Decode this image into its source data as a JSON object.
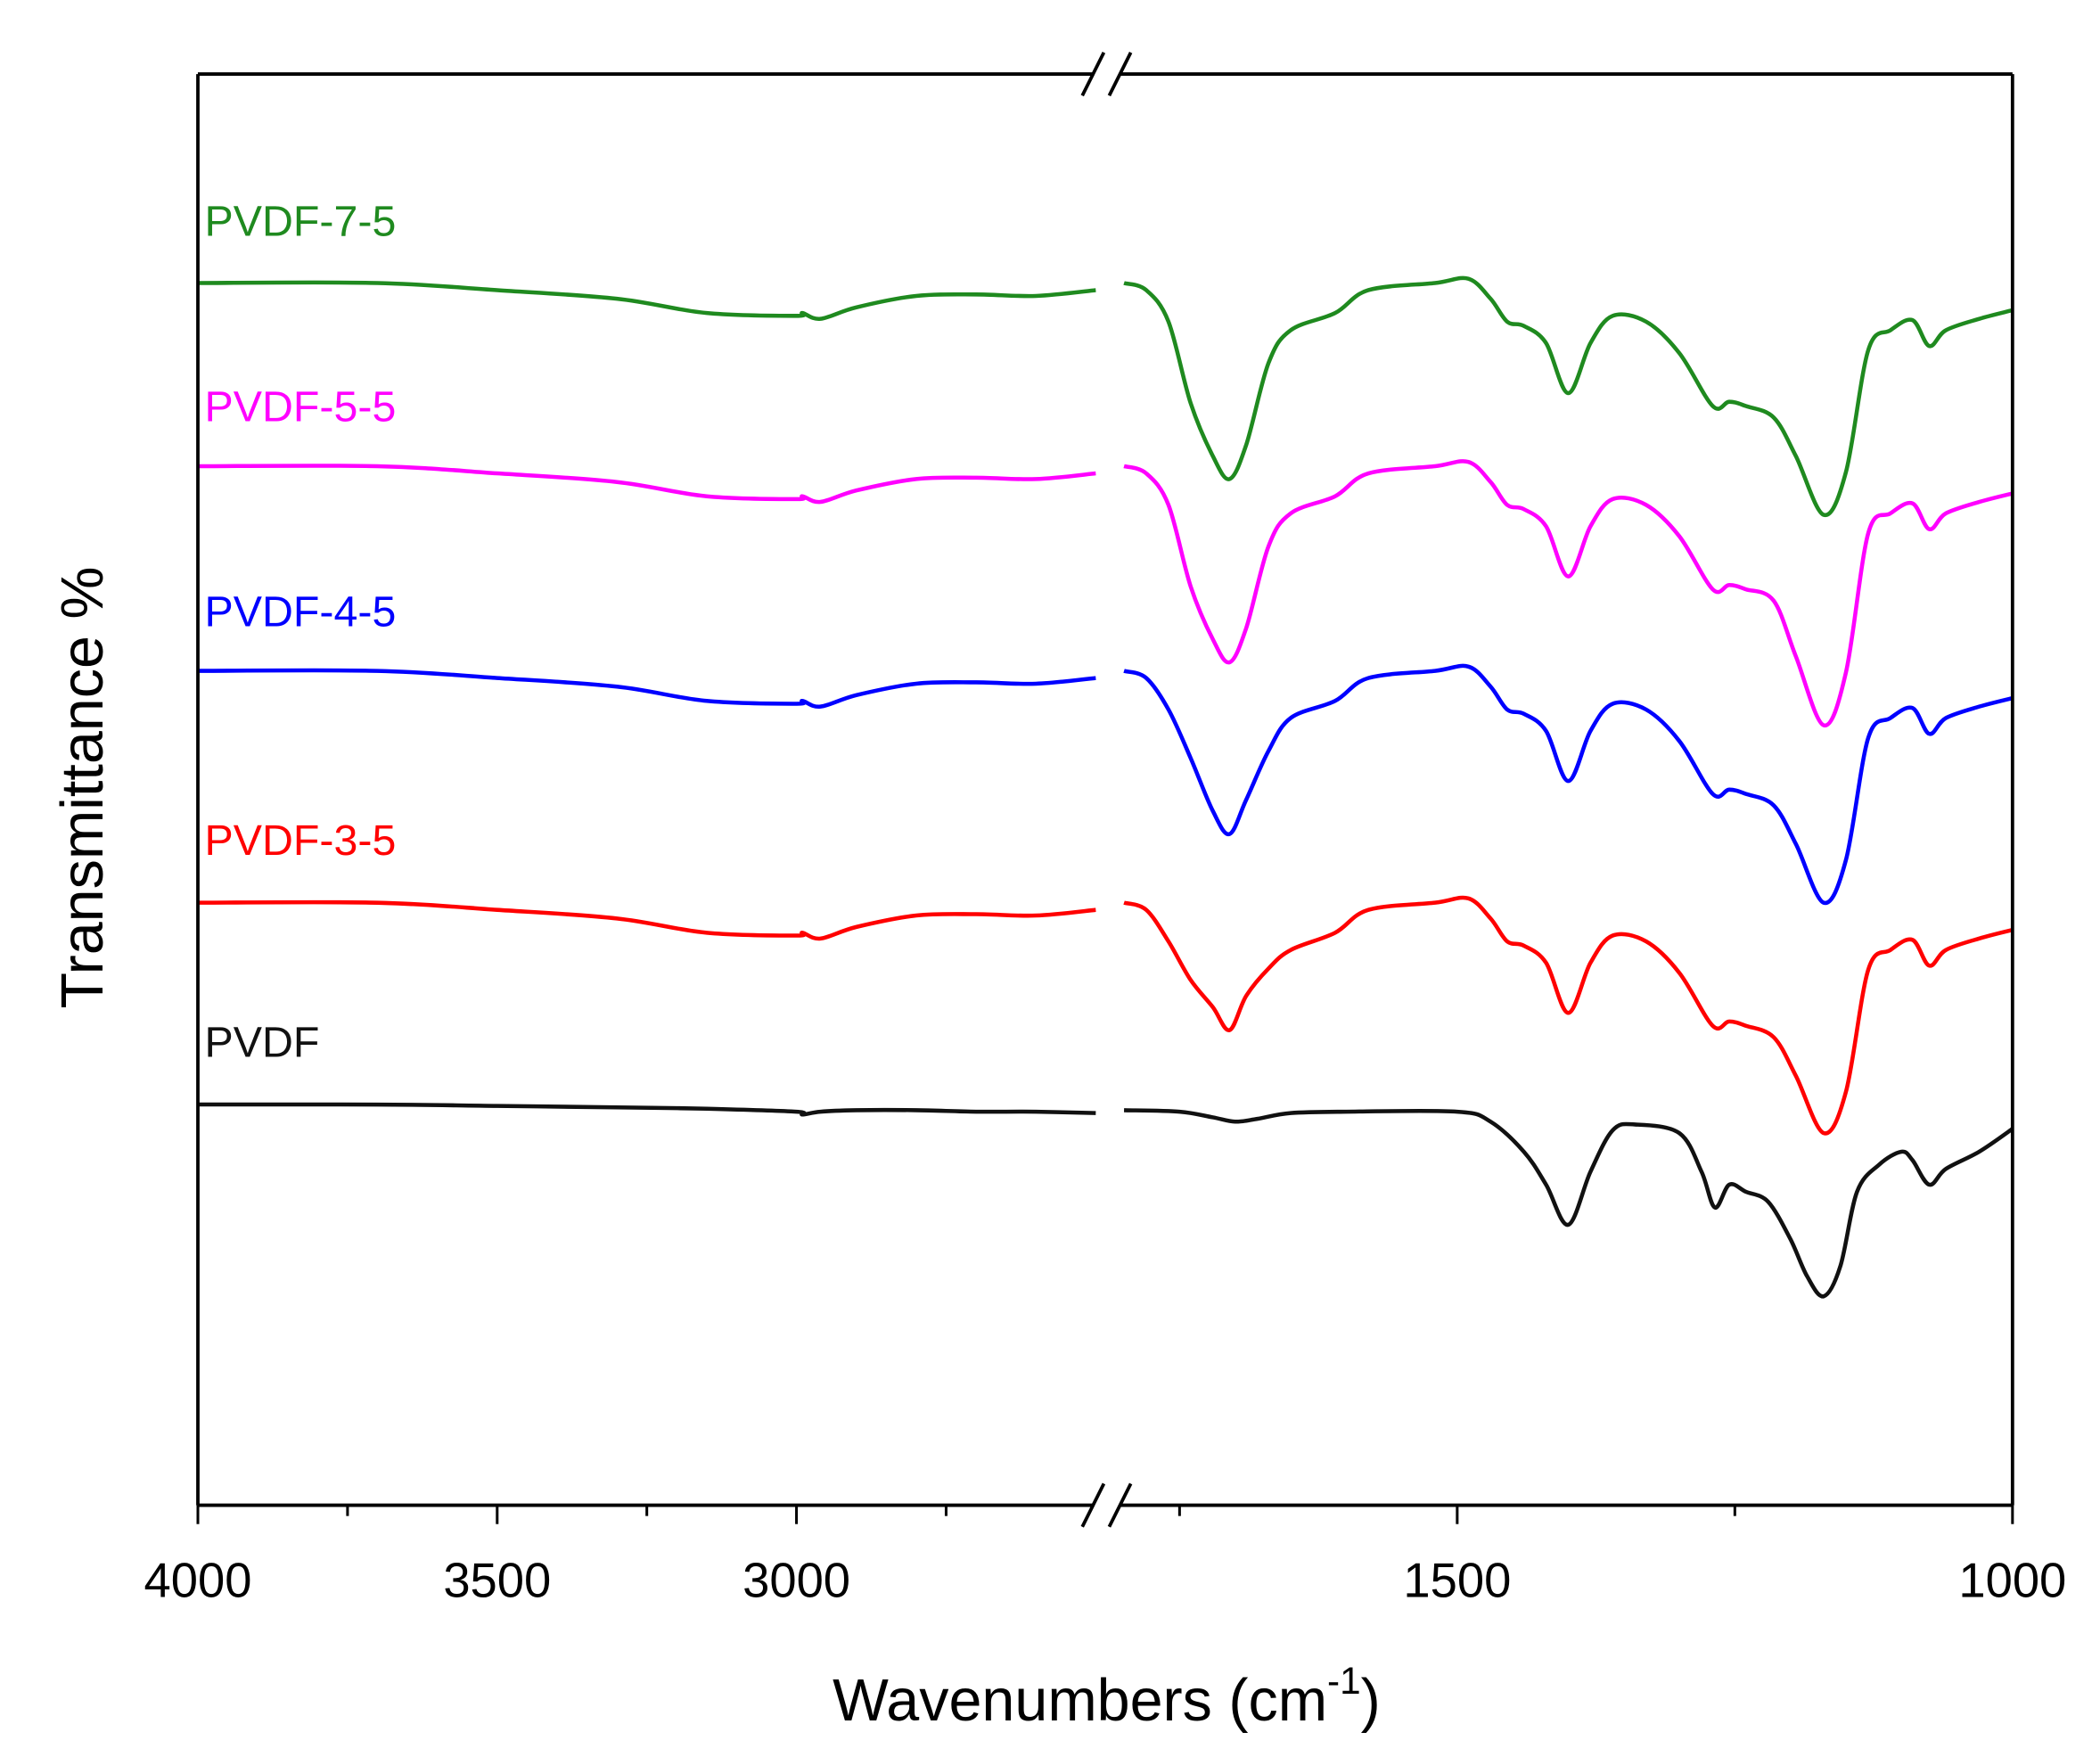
{
  "chart_data": {
    "type": "line",
    "title": "",
    "xlabel": "Wavenumbers (cm",
    "xlabel_sup": "-1",
    "xlabel_end": ")",
    "ylabel": "Transmittance %",
    "x_axis": {
      "reversed": true,
      "broken": true,
      "segments": [
        {
          "range": [
            4000,
            2500
          ],
          "major_ticks": [
            4000,
            3500,
            3000
          ],
          "minor_ticks": [
            3750,
            3250,
            2750
          ],
          "tick_labels": [
            "4000",
            "3500",
            "3000"
          ]
        },
        {
          "range": [
            1800,
            1000
          ],
          "major_ticks": [
            1500,
            1000
          ],
          "minor_ticks": [
            1750,
            1250
          ],
          "tick_labels": [
            "1500",
            "1000"
          ]
        }
      ]
    },
    "ylim": [
      0,
      100
    ],
    "y_ticks_shown": false,
    "grid": false,
    "legend": "inline labels above each curve (left)",
    "series": [
      {
        "name": "PVDF-7-5",
        "color": "#1f8a1f",
        "left": {
          "x": [
            4000,
            3700,
            3500,
            3300,
            3150,
            3000,
            2990,
            2960,
            2900,
            2800,
            2700,
            2600,
            2500
          ],
          "y": [
            85.4,
            85.4,
            84.9,
            84.3,
            83.3,
            83.1,
            83.3,
            82.9,
            83.7,
            84.5,
            84.6,
            84.5,
            84.9
          ]
        },
        "right": {
          "x": [
            1800,
            1780,
            1760,
            1740,
            1720,
            1705,
            1690,
            1670,
            1650,
            1610,
            1580,
            1520,
            1490,
            1470,
            1455,
            1440,
            1420,
            1400,
            1380,
            1360,
            1330,
            1300,
            1270,
            1255,
            1240,
            1215,
            1195,
            1170,
            1150,
            1130,
            1110,
            1090,
            1075,
            1060,
            1030,
            1000
          ],
          "y": [
            85.4,
            84.9,
            82.7,
            77.0,
            73.3,
            71.7,
            74.1,
            79.8,
            82.1,
            83.3,
            84.9,
            85.4,
            85.7,
            84.3,
            82.7,
            82.4,
            81.2,
            77.7,
            81.2,
            83.1,
            82.7,
            80.5,
            76.8,
            77.1,
            76.8,
            76.0,
            73.3,
            69.2,
            72.2,
            80.7,
            82.1,
            82.8,
            81.0,
            82.1,
            82.9,
            83.5
          ]
        }
      },
      {
        "name": "PVDF-5-5",
        "color": "#ff00ff",
        "left": {
          "x": [
            4000,
            3700,
            3500,
            3300,
            3150,
            3000,
            2990,
            2960,
            2900,
            2800,
            2700,
            2600,
            2500
          ],
          "y": [
            72.6,
            72.6,
            72.1,
            71.5,
            70.5,
            70.3,
            70.5,
            70.1,
            70.9,
            71.7,
            71.8,
            71.7,
            72.1
          ]
        },
        "right": {
          "x": [
            1800,
            1780,
            1760,
            1740,
            1720,
            1705,
            1690,
            1670,
            1650,
            1610,
            1580,
            1520,
            1490,
            1470,
            1455,
            1440,
            1420,
            1400,
            1380,
            1360,
            1330,
            1300,
            1270,
            1255,
            1240,
            1215,
            1195,
            1170,
            1150,
            1130,
            1110,
            1090,
            1075,
            1060,
            1030,
            1000
          ],
          "y": [
            72.6,
            72.1,
            69.9,
            64.2,
            60.5,
            58.9,
            61.3,
            67.0,
            69.3,
            70.5,
            72.1,
            72.6,
            72.9,
            71.5,
            69.9,
            69.6,
            68.4,
            64.9,
            68.4,
            70.3,
            69.9,
            67.7,
            64.0,
            64.3,
            64.0,
            63.2,
            59.3,
            54.5,
            58.2,
            67.9,
            69.3,
            70.0,
            68.2,
            69.3,
            70.1,
            70.7
          ]
        }
      },
      {
        "name": "PVDF-4-5",
        "color": "#0000ff",
        "left": {
          "x": [
            4000,
            3700,
            3500,
            3300,
            3150,
            3000,
            2990,
            2960,
            2900,
            2800,
            2700,
            2600,
            2500
          ],
          "y": [
            58.3,
            58.3,
            57.8,
            57.2,
            56.2,
            56.0,
            56.2,
            55.8,
            56.6,
            57.4,
            57.5,
            57.4,
            57.8
          ]
        },
        "right": {
          "x": [
            1800,
            1780,
            1760,
            1740,
            1720,
            1705,
            1690,
            1670,
            1650,
            1610,
            1580,
            1520,
            1490,
            1470,
            1455,
            1440,
            1420,
            1400,
            1380,
            1360,
            1330,
            1300,
            1270,
            1255,
            1240,
            1215,
            1195,
            1170,
            1150,
            1130,
            1110,
            1090,
            1075,
            1060,
            1030,
            1000
          ],
          "y": [
            58.3,
            57.8,
            55.6,
            52.2,
            48.5,
            46.9,
            49.3,
            52.7,
            55.0,
            56.2,
            57.8,
            58.3,
            58.6,
            57.2,
            55.6,
            55.3,
            54.1,
            50.6,
            54.1,
            56.0,
            55.6,
            53.4,
            49.7,
            50.0,
            49.7,
            48.9,
            46.2,
            42.1,
            45.1,
            53.6,
            55.0,
            55.7,
            53.9,
            55.0,
            55.8,
            56.4
          ]
        }
      },
      {
        "name": "PVDF-3-5",
        "color": "#ff0000",
        "left": {
          "x": [
            4000,
            3700,
            3500,
            3300,
            3150,
            3000,
            2990,
            2960,
            2900,
            2800,
            2700,
            2600,
            2500
          ],
          "y": [
            42.1,
            42.1,
            41.6,
            41.0,
            40.0,
            39.8,
            40.0,
            39.6,
            40.4,
            41.2,
            41.3,
            41.2,
            41.6
          ]
        },
        "right": {
          "x": [
            1800,
            1780,
            1760,
            1740,
            1720,
            1705,
            1690,
            1670,
            1650,
            1610,
            1580,
            1520,
            1490,
            1470,
            1455,
            1440,
            1420,
            1400,
            1380,
            1360,
            1330,
            1300,
            1270,
            1255,
            1240,
            1215,
            1195,
            1170,
            1150,
            1130,
            1110,
            1090,
            1075,
            1060,
            1030,
            1000
          ],
          "y": [
            42.1,
            41.6,
            39.4,
            36.7,
            34.8,
            33.2,
            35.6,
            37.5,
            38.8,
            40.0,
            41.6,
            42.1,
            42.4,
            41.0,
            39.4,
            39.1,
            37.9,
            34.4,
            37.9,
            39.8,
            39.4,
            37.2,
            33.5,
            33.8,
            33.5,
            32.7,
            30.0,
            26.0,
            28.9,
            37.4,
            38.8,
            39.5,
            37.7,
            38.8,
            39.6,
            40.2
          ]
        }
      },
      {
        "name": "PVDF",
        "color": "#111111",
        "left": {
          "x": [
            4000,
            3700,
            3500,
            3300,
            3150,
            3000,
            2990,
            2960,
            2900,
            2800,
            2700,
            2600,
            2500
          ],
          "y": [
            28.0,
            28.0,
            27.9,
            27.8,
            27.7,
            27.5,
            27.3,
            27.5,
            27.6,
            27.6,
            27.5,
            27.5,
            27.4
          ]
        },
        "right": {
          "x": [
            1800,
            1750,
            1720,
            1700,
            1680,
            1650,
            1600,
            1500,
            1470,
            1440,
            1420,
            1400,
            1380,
            1360,
            1340,
            1300,
            1280,
            1268,
            1255,
            1240,
            1220,
            1200,
            1185,
            1170,
            1155,
            1140,
            1120,
            1100,
            1090,
            1075,
            1060,
            1030,
            1000
          ],
          "y": [
            27.6,
            27.5,
            27.1,
            26.8,
            27.0,
            27.4,
            27.5,
            27.5,
            26.8,
            24.7,
            22.4,
            19.6,
            23.3,
            26.2,
            26.6,
            26.0,
            23.3,
            20.8,
            22.4,
            21.9,
            21.2,
            18.6,
            16.0,
            14.6,
            16.7,
            21.9,
            23.8,
            24.7,
            24.1,
            22.4,
            23.5,
            24.7,
            26.3
          ]
        }
      }
    ]
  }
}
